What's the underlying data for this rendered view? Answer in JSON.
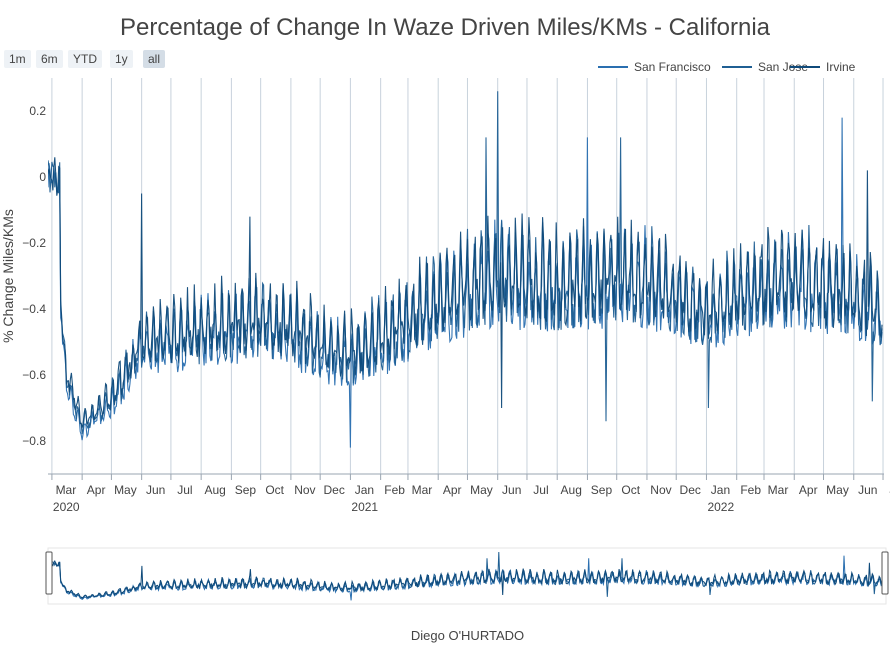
{
  "chart_data": {
    "type": "line",
    "title": "Percentage of Change In Waze Driven Miles/KMs - California",
    "ylabel": "% Change Miles/KMs",
    "xlabel": "",
    "x_range": [
      "2020-03-01",
      "2022-07-01"
    ],
    "ylim": [
      -0.9,
      0.3
    ],
    "y_ticks": [
      0.2,
      0,
      -0.2,
      -0.4,
      -0.6,
      -0.8
    ],
    "y_tick_labels": [
      "0.2",
      "0",
      "−0.2",
      "−0.4",
      "−0.6",
      "−0.8"
    ],
    "x_tick_labels": [
      "Mar",
      "Apr",
      "May",
      "Jun",
      "Jul",
      "Aug",
      "Sep",
      "Oct",
      "Nov",
      "Dec",
      "Jan",
      "Feb",
      "Mar",
      "Apr",
      "May",
      "Jun",
      "Jul",
      "Aug",
      "Sep",
      "Oct",
      "Nov",
      "Dec",
      "Jan",
      "Feb",
      "Mar",
      "Apr",
      "May",
      "Jun",
      "Jul"
    ],
    "x_year_labels": [
      "2020",
      "2021",
      "2022"
    ],
    "grid": "vertical gridline at each month tick",
    "legend_position": "top-right",
    "series": [
      {
        "name": "San Francisco",
        "color": "#2a6fb0"
      },
      {
        "name": "San Jose",
        "color": "#1f5f93"
      },
      {
        "name": "Irvine",
        "color": "#0f4a7a"
      }
    ],
    "monthly_trend": [
      {
        "date": "2020-03-01",
        "baseline": 0.0,
        "amplitude": 0.05
      },
      {
        "date": "2020-03-15",
        "baseline": -0.6,
        "amplitude": 0.05
      },
      {
        "date": "2020-04-01",
        "baseline": -0.76,
        "amplitude": 0.03
      },
      {
        "date": "2020-05-01",
        "baseline": -0.68,
        "amplitude": 0.05
      },
      {
        "date": "2020-06-01",
        "baseline": -0.52,
        "amplitude": 0.08
      },
      {
        "date": "2020-07-01",
        "baseline": -0.5,
        "amplitude": 0.1
      },
      {
        "date": "2020-08-01",
        "baseline": -0.48,
        "amplitude": 0.11
      },
      {
        "date": "2020-09-01",
        "baseline": -0.46,
        "amplitude": 0.12
      },
      {
        "date": "2020-10-01",
        "baseline": -0.45,
        "amplitude": 0.12
      },
      {
        "date": "2020-11-01",
        "baseline": -0.47,
        "amplitude": 0.12
      },
      {
        "date": "2020-12-01",
        "baseline": -0.53,
        "amplitude": 0.1
      },
      {
        "date": "2021-01-01",
        "baseline": -0.55,
        "amplitude": 0.1
      },
      {
        "date": "2021-02-01",
        "baseline": -0.5,
        "amplitude": 0.12
      },
      {
        "date": "2021-03-01",
        "baseline": -0.45,
        "amplitude": 0.13
      },
      {
        "date": "2021-04-01",
        "baseline": -0.39,
        "amplitude": 0.14
      },
      {
        "date": "2021-05-01",
        "baseline": -0.35,
        "amplitude": 0.15
      },
      {
        "date": "2021-06-01",
        "baseline": -0.31,
        "amplitude": 0.16
      },
      {
        "date": "2021-07-01",
        "baseline": -0.33,
        "amplitude": 0.16
      },
      {
        "date": "2021-08-01",
        "baseline": -0.35,
        "amplitude": 0.15
      },
      {
        "date": "2021-09-01",
        "baseline": -0.33,
        "amplitude": 0.15
      },
      {
        "date": "2021-10-01",
        "baseline": -0.32,
        "amplitude": 0.15
      },
      {
        "date": "2021-11-01",
        "baseline": -0.33,
        "amplitude": 0.15
      },
      {
        "date": "2021-12-01",
        "baseline": -0.37,
        "amplitude": 0.13
      },
      {
        "date": "2022-01-01",
        "baseline": -0.43,
        "amplitude": 0.11
      },
      {
        "date": "2022-02-01",
        "baseline": -0.37,
        "amplitude": 0.13
      },
      {
        "date": "2022-03-01",
        "baseline": -0.35,
        "amplitude": 0.14
      },
      {
        "date": "2022-04-01",
        "baseline": -0.33,
        "amplitude": 0.15
      },
      {
        "date": "2022-05-01",
        "baseline": -0.35,
        "amplitude": 0.15
      },
      {
        "date": "2022-06-01",
        "baseline": -0.38,
        "amplitude": 0.13
      },
      {
        "date": "2022-07-01",
        "baseline": -0.42,
        "amplitude": 0.12
      }
    ],
    "spikes": [
      {
        "date": "2020-06-01",
        "value": -0.05
      },
      {
        "date": "2020-09-20",
        "value": -0.12
      },
      {
        "date": "2021-06-01",
        "value": 0.26
      },
      {
        "date": "2021-05-20",
        "value": 0.12
      },
      {
        "date": "2021-09-01",
        "value": 0.12
      },
      {
        "date": "2021-10-05",
        "value": 0.12
      },
      {
        "date": "2022-05-20",
        "value": 0.18
      },
      {
        "date": "2022-06-15",
        "value": 0.02
      },
      {
        "date": "2021-09-20",
        "value": -0.74
      },
      {
        "date": "2021-06-05",
        "value": -0.7
      },
      {
        "date": "2021-01-01",
        "value": -0.82
      },
      {
        "date": "2022-01-03",
        "value": -0.7
      },
      {
        "date": "2022-06-20",
        "value": -0.68
      }
    ]
  },
  "range_selector": [
    "1m",
    "6m",
    "YTD",
    "1y",
    "all"
  ],
  "range_selected": "all",
  "credit": "Diego O'HURTADO"
}
